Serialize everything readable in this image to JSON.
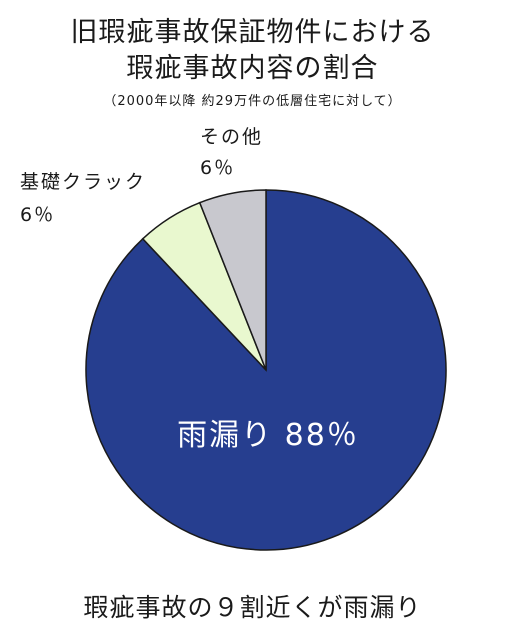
{
  "header": {
    "title_line1": "旧瑕疵事故保証物件における",
    "title_line2": "瑕疵事故内容の割合",
    "subtitle": "（2000年以降 約29万件の低層住宅に対して）"
  },
  "chart_data": {
    "type": "pie",
    "title": "旧瑕疵事故保証物件における瑕疵事故内容の割合",
    "subtitle": "（2000年以降 約29万件の低層住宅に対して）",
    "slices": [
      {
        "label": "雨漏り",
        "value": 88,
        "display": "88％",
        "color": "#263e8f"
      },
      {
        "label": "基礎クラック",
        "value": 6,
        "display": "6％",
        "color": "#e9f8cf"
      },
      {
        "label": "その他",
        "value": 6,
        "display": "6％",
        "color": "#c8c8ce"
      }
    ],
    "start": "top",
    "direction": "clockwise"
  },
  "labels": {
    "rain_label": "雨漏り 88％",
    "crack_name": "基礎クラック",
    "crack_pct": "6％",
    "other_name": "その他",
    "other_pct": "6％"
  },
  "footer": {
    "caption": "瑕疵事故の９割近くが雨漏り"
  }
}
